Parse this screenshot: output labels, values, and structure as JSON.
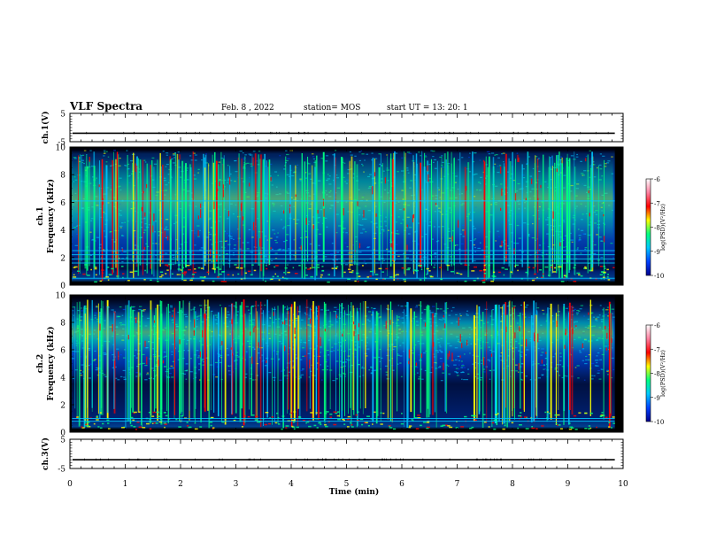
{
  "header": {
    "title": "VLF Spectra",
    "date": "Feb. 8 , 2022",
    "station": "station= MOS",
    "start": "start UT = 13: 20: 1"
  },
  "colors": {
    "background": "#ffffff",
    "axes": "#000000",
    "spectrogram_dark": "#000000",
    "colormap": [
      "#00008c",
      "#0040ff",
      "#00c8ff",
      "#00ff80",
      "#ffff00",
      "#ff0000",
      "#ff80a0",
      "#ffffff"
    ]
  },
  "chart_data": [
    {
      "type": "line",
      "name": "ch1",
      "ylabel": "ch.1(V)",
      "ylim": [
        -5,
        5
      ],
      "yticks": [
        "5",
        "-5"
      ],
      "signal": "flat line near -2 V"
    },
    {
      "type": "heatmap",
      "name": "ch1-spectrogram",
      "ylabel": "ch.1\nFrequency (kHz)",
      "ylim": [
        0,
        10
      ],
      "yticks": [
        "0",
        "2",
        "4",
        "6",
        "8",
        "10"
      ],
      "colorbar": {
        "label": "log(PSD)(V²/Hz)",
        "ticks": [
          "-6",
          "-7",
          "-8",
          "-9",
          "-10"
        ],
        "range": [
          -10,
          -6
        ]
      },
      "horizontal_lines_khz": [
        0.5,
        1.6,
        1.9,
        2.2,
        2.5,
        6.1
      ],
      "dominant_band_khz": [
        2.5,
        9.5
      ]
    },
    {
      "type": "heatmap",
      "name": "ch2-spectrogram",
      "ylabel": "ch.2\nFrequency (kHz)",
      "ylim": [
        0,
        10
      ],
      "yticks": [
        "0",
        "2",
        "4",
        "6",
        "8",
        "10"
      ],
      "colorbar": {
        "label": "log(PSD)(V²/Hz)",
        "ticks": [
          "-6",
          "-7",
          "-8",
          "-9",
          "-10"
        ],
        "range": [
          -10,
          -6
        ]
      },
      "horizontal_lines_khz": [
        0.8,
        1.0
      ],
      "dominant_band_khz": [
        5.0,
        9.0
      ]
    },
    {
      "type": "line",
      "name": "ch3",
      "ylabel": "ch.3(V)",
      "ylim": [
        -5,
        5
      ],
      "yticks": [
        "5",
        "-5"
      ],
      "signal": "flat line near -2 V"
    }
  ],
  "xaxis": {
    "label": "Time (min)",
    "xlim": [
      0,
      10
    ],
    "ticks": [
      "0",
      "1",
      "2",
      "3",
      "4",
      "5",
      "6",
      "7",
      "8",
      "9",
      "10"
    ],
    "data_end_min": 9.85
  }
}
